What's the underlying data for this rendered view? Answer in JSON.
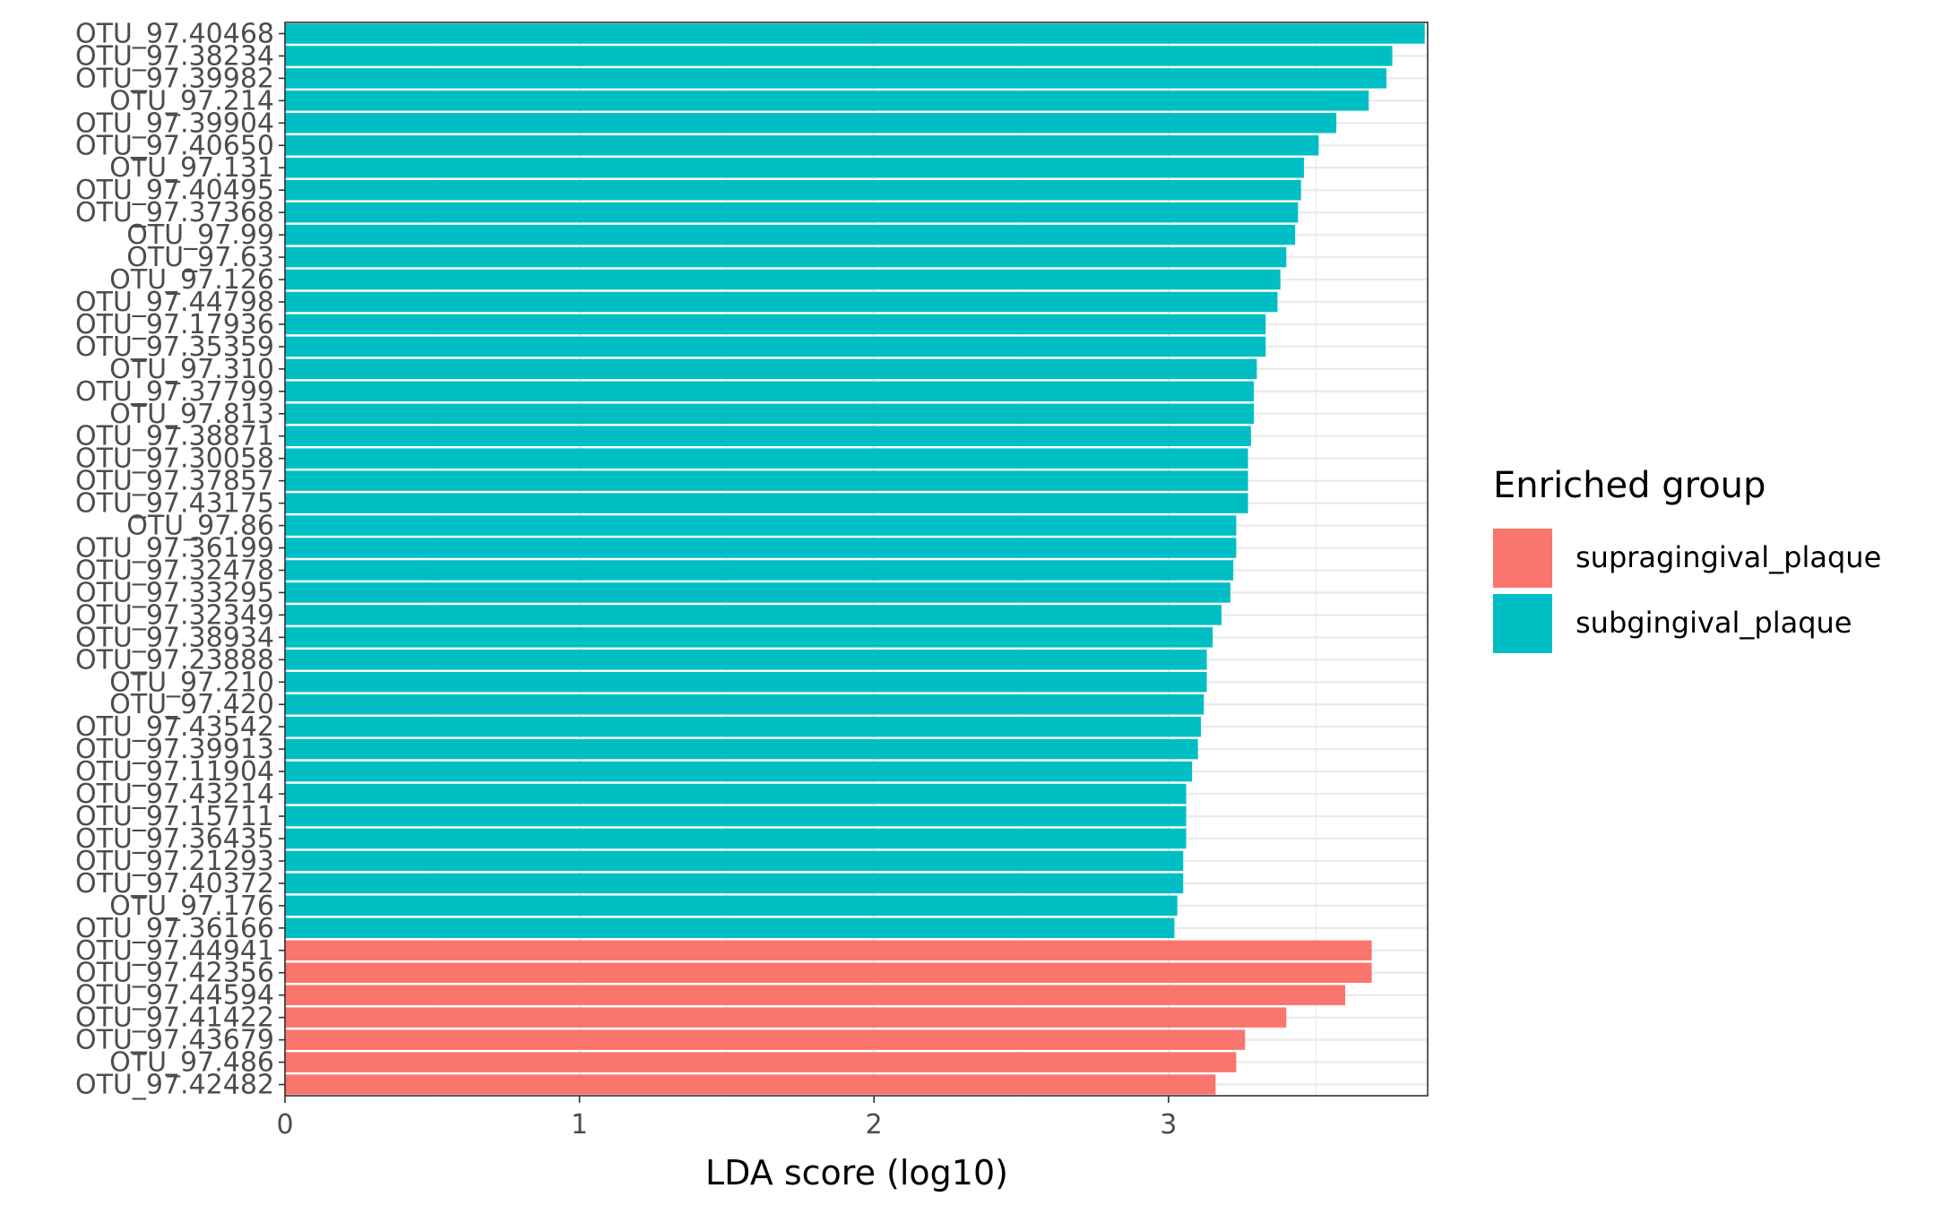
{
  "chart_data": {
    "type": "bar",
    "orientation": "horizontal",
    "xlabel": "LDA score (log10)",
    "ylabel": "",
    "xlim": [
      0,
      3.88
    ],
    "x_ticks": [
      0,
      1,
      2,
      3
    ],
    "grid": true,
    "legend": {
      "title": "Enriched group",
      "placement": "right",
      "entries": [
        {
          "name": "supragingival_plaque",
          "color": "#F8766D"
        },
        {
          "name": "subgingival_plaque",
          "color": "#00BFC4"
        }
      ]
    },
    "categories": [
      "OTU_97.40468",
      "OTU_97.38234",
      "OTU_97.39982",
      "OTU_97.214",
      "OTU_97.39904",
      "OTU_97.40650",
      "OTU_97.131",
      "OTU_97.40495",
      "OTU_97.37368",
      "OTU_97.99",
      "OTU_97.63",
      "OTU_97.126",
      "OTU_97.44798",
      "OTU_97.17936",
      "OTU_97.35359",
      "OTU_97.310",
      "OTU_97.37799",
      "OTU_97.813",
      "OTU_97.38871",
      "OTU_97.30058",
      "OTU_97.37857",
      "OTU_97.43175",
      "OTU_97.86",
      "OTU_97.36199",
      "OTU_97.32478",
      "OTU_97.33295",
      "OTU_97.32349",
      "OTU_97.38934",
      "OTU_97.23888",
      "OTU_97.210",
      "OTU_97.420",
      "OTU_97.43542",
      "OTU_97.39913",
      "OTU_97.11904",
      "OTU_97.43214",
      "OTU_97.15711",
      "OTU_97.36435",
      "OTU_97.21293",
      "OTU_97.40372",
      "OTU_97.176",
      "OTU_97.36166",
      "OTU_97.44941",
      "OTU_97.42356",
      "OTU_97.44594",
      "OTU_97.41422",
      "OTU_97.43679",
      "OTU_97.486",
      "OTU_97.42482"
    ],
    "values": [
      3.87,
      3.76,
      3.74,
      3.68,
      3.57,
      3.51,
      3.46,
      3.45,
      3.44,
      3.43,
      3.4,
      3.38,
      3.37,
      3.33,
      3.33,
      3.3,
      3.29,
      3.29,
      3.28,
      3.27,
      3.27,
      3.27,
      3.23,
      3.23,
      3.22,
      3.21,
      3.18,
      3.15,
      3.13,
      3.13,
      3.12,
      3.11,
      3.1,
      3.08,
      3.06,
      3.06,
      3.06,
      3.05,
      3.05,
      3.03,
      3.02,
      3.69,
      3.69,
      3.6,
      3.4,
      3.26,
      3.23,
      3.16
    ],
    "groups": [
      "subgingival_plaque",
      "subgingival_plaque",
      "subgingival_plaque",
      "subgingival_plaque",
      "subgingival_plaque",
      "subgingival_plaque",
      "subgingival_plaque",
      "subgingival_plaque",
      "subgingival_plaque",
      "subgingival_plaque",
      "subgingival_plaque",
      "subgingival_plaque",
      "subgingival_plaque",
      "subgingival_plaque",
      "subgingival_plaque",
      "subgingival_plaque",
      "subgingival_plaque",
      "subgingival_plaque",
      "subgingival_plaque",
      "subgingival_plaque",
      "subgingival_plaque",
      "subgingival_plaque",
      "subgingival_plaque",
      "subgingival_plaque",
      "subgingival_plaque",
      "subgingival_plaque",
      "subgingival_plaque",
      "subgingival_plaque",
      "subgingival_plaque",
      "subgingival_plaque",
      "subgingival_plaque",
      "subgingival_plaque",
      "subgingival_plaque",
      "subgingival_plaque",
      "subgingival_plaque",
      "subgingival_plaque",
      "subgingival_plaque",
      "subgingival_plaque",
      "subgingival_plaque",
      "subgingival_plaque",
      "subgingival_plaque",
      "supragingival_plaque",
      "supragingival_plaque",
      "supragingival_plaque",
      "supragingival_plaque",
      "supragingival_plaque",
      "supragingival_plaque",
      "supragingival_plaque"
    ]
  }
}
